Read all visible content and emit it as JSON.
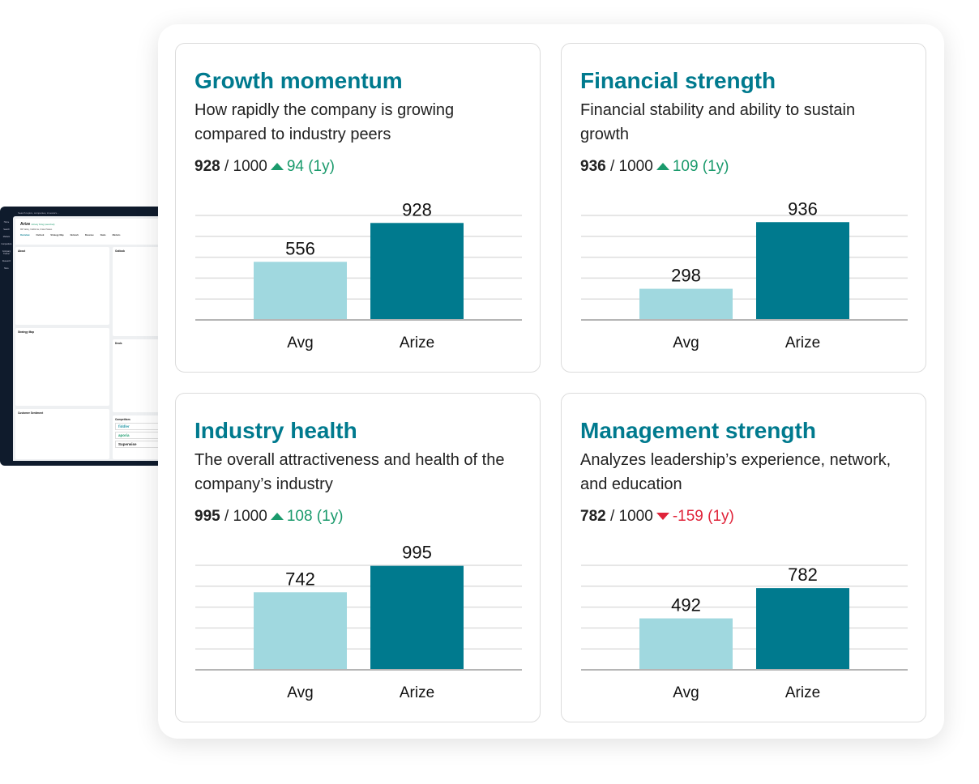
{
  "background_app": {
    "search_placeholder": "Search topics, companies, investors...",
    "sidebar": [
      "Home",
      "Search",
      "Markets",
      "Competitors",
      "Company Tracker",
      "Research",
      "More"
    ],
    "company": "Arize",
    "company_badge": "Actively hiring (Launched)",
    "company_sub": "Mill Valley, California, United States",
    "tabs": [
      "Overview",
      "Outlook",
      "Strategy Map",
      "Network",
      "Revenue",
      "Deals",
      "Markets"
    ],
    "sections": {
      "about": "About",
      "strategy_map": "Strategy Map",
      "customer_sentiment": "Customer Sentiment",
      "outlook": "Outlook",
      "deals": "Deals",
      "competitors": "Competitors"
    },
    "competitors": [
      "fiddler",
      "aporia",
      "Superwise"
    ]
  },
  "colors": {
    "title": "#007a8e",
    "avg_bar": "#a0d8df",
    "company_bar": "#007a8e",
    "up": "#1a9a6c",
    "down": "#e0243a"
  },
  "chart_data": [
    {
      "type": "bar",
      "title": "Growth momentum",
      "subtitle": "How rapidly the company is growing compared to industry peers",
      "score": "928",
      "max": "/ 1000",
      "change_dir": "up",
      "change": "94 (1y)",
      "categories": [
        "Avg",
        "Arize"
      ],
      "values": [
        556,
        928
      ],
      "ylim": [
        0,
        1000
      ],
      "grid": true
    },
    {
      "type": "bar",
      "title": "Financial strength",
      "subtitle": "Financial stability and ability to sustain growth",
      "score": "936",
      "max": "/ 1000",
      "change_dir": "up",
      "change": "109 (1y)",
      "categories": [
        "Avg",
        "Arize"
      ],
      "values": [
        298,
        936
      ],
      "ylim": [
        0,
        1000
      ],
      "grid": true
    },
    {
      "type": "bar",
      "title": "Industry health",
      "subtitle": "The overall attractiveness and health of the company’s industry",
      "score": "995",
      "max": "/ 1000",
      "change_dir": "up",
      "change": "108 (1y)",
      "categories": [
        "Avg",
        "Arize"
      ],
      "values": [
        742,
        995
      ],
      "ylim": [
        0,
        1000
      ],
      "grid": true
    },
    {
      "type": "bar",
      "title": "Management strength",
      "subtitle": "Analyzes leadership’s experience, network, and education",
      "score": "782",
      "max": "/ 1000",
      "change_dir": "down",
      "change": "-159 (1y)",
      "categories": [
        "Avg",
        "Arize"
      ],
      "values": [
        492,
        782
      ],
      "ylim": [
        0,
        1000
      ],
      "grid": true
    }
  ]
}
